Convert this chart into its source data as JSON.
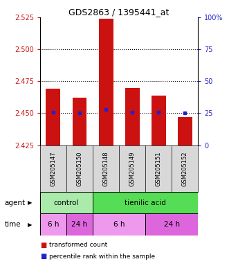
{
  "title": "GDS2863 / 1395441_at",
  "samples": [
    "GSM205147",
    "GSM205150",
    "GSM205148",
    "GSM205149",
    "GSM205151",
    "GSM205152"
  ],
  "bar_values": [
    2.469,
    2.462,
    2.524,
    2.47,
    2.464,
    2.447
  ],
  "bar_bottom": 2.425,
  "blue_values": [
    2.451,
    2.45,
    2.453,
    2.451,
    2.451,
    2.45
  ],
  "ylim_left": [
    2.425,
    2.525
  ],
  "ylim_right": [
    0,
    100
  ],
  "yticks_left": [
    2.425,
    2.45,
    2.475,
    2.5,
    2.525
  ],
  "yticks_right": [
    0,
    25,
    50,
    75,
    100
  ],
  "hlines": [
    2.45,
    2.475,
    2.5
  ],
  "bar_color": "#cc1111",
  "blue_color": "#2222cc",
  "bar_width": 0.55,
  "sample_bg": "#d8d8d8",
  "agent_labels": [
    {
      "label": "control",
      "start": 0,
      "end": 2,
      "color": "#aaeaaa"
    },
    {
      "label": "tienilic acid",
      "start": 2,
      "end": 6,
      "color": "#55dd55"
    }
  ],
  "time_labels": [
    {
      "label": "6 h",
      "start": 0,
      "end": 1,
      "color": "#ee99ee"
    },
    {
      "label": "24 h",
      "start": 1,
      "end": 2,
      "color": "#dd66dd"
    },
    {
      "label": "6 h",
      "start": 2,
      "end": 4,
      "color": "#ee99ee"
    },
    {
      "label": "24 h",
      "start": 4,
      "end": 6,
      "color": "#dd66dd"
    }
  ],
  "legend_red_label": "transformed count",
  "legend_blue_label": "percentile rank within the sample",
  "bg_color": "#ffffff",
  "tick_color_left": "#cc1111",
  "tick_color_right": "#2222cc"
}
